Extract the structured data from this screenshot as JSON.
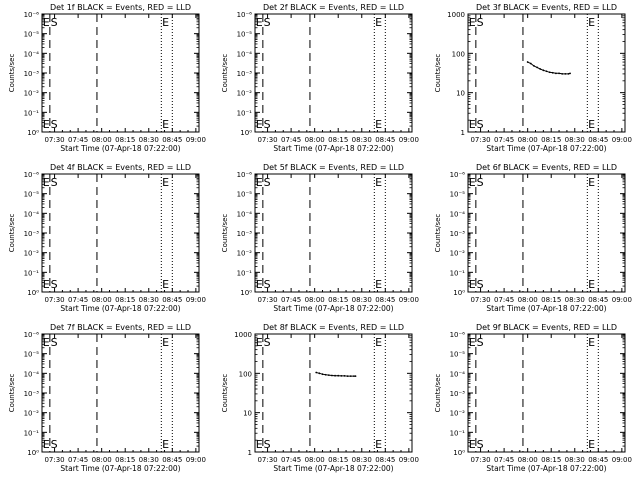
{
  "xlabel": "Start Time (07-Apr-18 07:22:00)",
  "ylabel": "Counts/sec",
  "x_ticks": [
    "07:30",
    "07:45",
    "08:00",
    "08:15",
    "08:30",
    "08:45",
    "09:00"
  ],
  "x_tick_values_min": [
    0,
    15,
    30,
    45,
    60,
    75,
    90
  ],
  "x_range_min": [
    -8,
    92
  ],
  "markers": {
    "dashed_min": [
      -3,
      27
    ],
    "dotted_min": [
      68,
      75
    ],
    "letters": [
      {
        "text": "E",
        "x_min": -7.5
      },
      {
        "text": "S",
        "x_min": -2.5
      },
      {
        "text": "E",
        "x_min": 68.5
      }
    ]
  },
  "colors": {
    "events": "#000000",
    "lld": "#ff0000"
  },
  "chart_data": [
    {
      "type": "line",
      "title": "Det 1f BLACK = Events, RED = LLD",
      "yscale": "log",
      "ylim": [
        1,
        1e-06
      ],
      "y_ticks": [
        "10⁰",
        "10⁻¹",
        "10⁻²",
        "10⁻³",
        "10⁻⁴",
        "10⁻⁵",
        "10⁻⁶"
      ],
      "series": []
    },
    {
      "type": "line",
      "title": "Det 2f BLACK = Events, RED = LLD",
      "yscale": "log",
      "ylim": [
        1,
        1e-06
      ],
      "y_ticks": [
        "10⁰",
        "10⁻¹",
        "10⁻²",
        "10⁻³",
        "10⁻⁴",
        "10⁻⁵",
        "10⁻⁶"
      ],
      "series": []
    },
    {
      "type": "line",
      "title": "Det 3f BLACK = Events, RED = LLD",
      "yscale": "log",
      "ylim": [
        1,
        1000
      ],
      "y_ticks": [
        "1",
        "10",
        "100",
        "1000"
      ],
      "series": [
        {
          "x_min": [
            30,
            32,
            34,
            36,
            38,
            40,
            42,
            44,
            46,
            48,
            50,
            52,
            54,
            56,
            57
          ],
          "y": [
            60,
            55,
            48,
            44,
            40,
            37,
            35,
            33,
            32,
            31,
            31,
            30,
            30,
            30,
            31
          ]
        }
      ]
    },
    {
      "type": "line",
      "title": "Det 4f BLACK = Events, RED = LLD",
      "yscale": "log",
      "ylim": [
        1,
        1e-06
      ],
      "y_ticks": [
        "10⁰",
        "10⁻¹",
        "10⁻²",
        "10⁻³",
        "10⁻⁴",
        "10⁻⁵",
        "10⁻⁶"
      ],
      "series": []
    },
    {
      "type": "line",
      "title": "Det 5f BLACK = Events, RED = LLD",
      "yscale": "log",
      "ylim": [
        1,
        1e-06
      ],
      "y_ticks": [
        "10⁰",
        "10⁻¹",
        "10⁻²",
        "10⁻³",
        "10⁻⁴",
        "10⁻⁵",
        "10⁻⁶"
      ],
      "series": []
    },
    {
      "type": "line",
      "title": "Det 6f BLACK = Events, RED = LLD",
      "yscale": "log",
      "ylim": [
        1,
        1e-06
      ],
      "y_ticks": [
        "10⁰",
        "10⁻¹",
        "10⁻²",
        "10⁻³",
        "10⁻⁴",
        "10⁻⁵",
        "10⁻⁶"
      ],
      "series": []
    },
    {
      "type": "line",
      "title": "Det 7f BLACK = Events, RED = LLD",
      "yscale": "log",
      "ylim": [
        1,
        1e-06
      ],
      "y_ticks": [
        "10⁰",
        "10⁻¹",
        "10⁻²",
        "10⁻³",
        "10⁻⁴",
        "10⁻⁵",
        "10⁻⁶"
      ],
      "series": []
    },
    {
      "type": "line",
      "title": "Det 8f BLACK = Events, RED = LLD",
      "yscale": "log",
      "ylim": [
        1,
        1000
      ],
      "y_ticks": [
        "1",
        "10",
        "100",
        "1000"
      ],
      "series": [
        {
          "x_min": [
            31,
            33,
            35,
            37,
            39,
            41,
            43,
            45,
            47,
            49,
            51,
            53,
            55,
            56
          ],
          "y": [
            105,
            100,
            95,
            92,
            90,
            88,
            87,
            87,
            86,
            86,
            85,
            85,
            85,
            85
          ]
        }
      ]
    },
    {
      "type": "line",
      "title": "Det 9f BLACK = Events, RED = LLD",
      "yscale": "log",
      "ylim": [
        1,
        1e-06
      ],
      "y_ticks": [
        "10⁰",
        "10⁻¹",
        "10⁻²",
        "10⁻³",
        "10⁻⁴",
        "10⁻⁵",
        "10⁻⁶"
      ],
      "series": []
    }
  ]
}
